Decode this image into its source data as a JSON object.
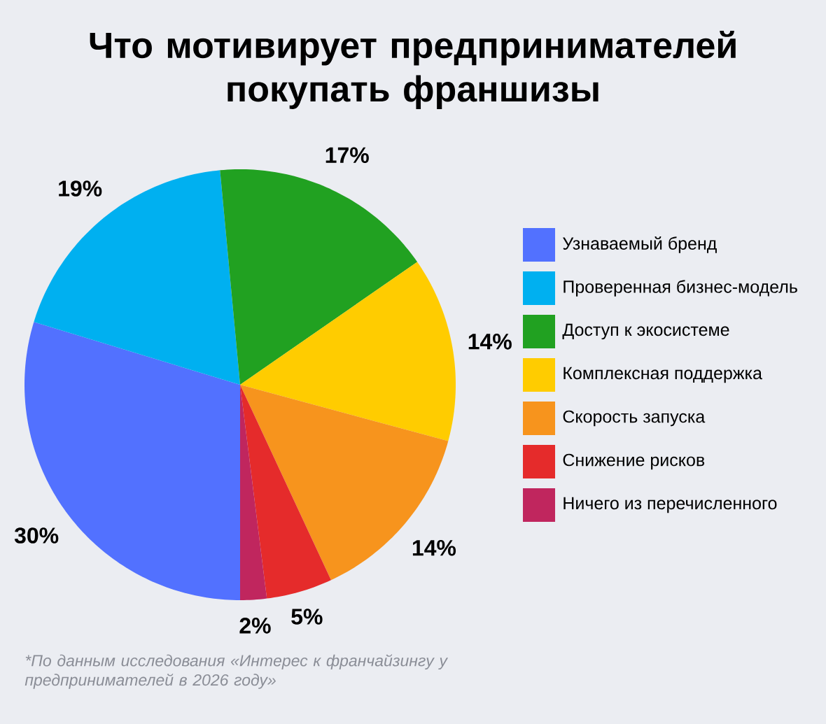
{
  "chart_data": {
    "type": "pie",
    "title": "Что мотивирует предпринимателей покупать франшизы",
    "categories": [
      "Узнаваемый бренд",
      "Проверенная бизнес-модель",
      "Доступ к экосистеме",
      "Комплексная поддержка",
      "Скорость запуска",
      "Снижение рисков",
      "Ничего из перечисленного"
    ],
    "values": [
      30,
      19,
      17,
      14,
      14,
      5,
      2
    ],
    "colors": [
      "#5271ff",
      "#00b0f0",
      "#21a121",
      "#ffcc00",
      "#f7941d",
      "#e52b2b",
      "#c0265e"
    ],
    "value_labels": [
      "30%",
      "19%",
      "17%",
      "14%",
      "14%",
      "5%",
      "2%"
    ],
    "legend": "right",
    "annotations": [
      "*По данным исследования «Интерес к франчайзингу у предпринимателей в 2026 году»"
    ]
  }
}
